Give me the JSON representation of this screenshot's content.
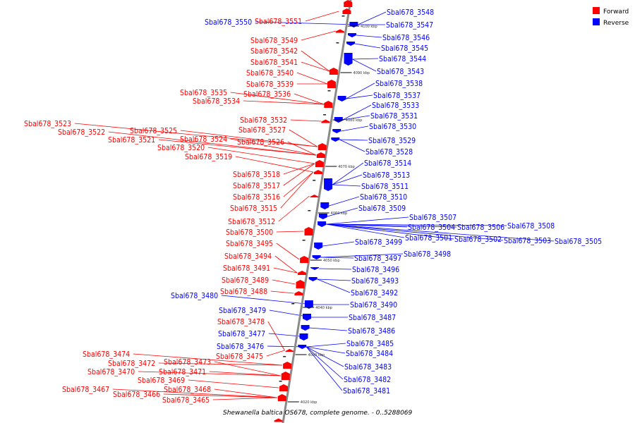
{
  "caption": "Shewanella baltica OS678, complete genome. - 0..5288069",
  "legend": [
    {
      "label": "Forward",
      "color": "#ff0000"
    },
    {
      "label": "Reverse",
      "color": "#0000ff"
    }
  ],
  "colors": {
    "forward": "#ff0000",
    "reverse": "#0000ff",
    "backbone": "#888888"
  },
  "ticks": [
    "4100 kbp",
    "4090 kbp",
    "4080 kbp",
    "4070 kbp",
    "4060 kbp",
    "4050 kbp",
    "4040 kbp",
    "4030 kbp",
    "4020 kbp"
  ],
  "forward_labels": [
    "Sbal678_3551",
    "Sbal678_3549",
    "Sbal678_3542",
    "Sbal678_3541",
    "Sbal678_3540",
    "Sbal678_3539",
    "Sbal678_3535",
    "Sbal678_3536",
    "Sbal678_3534",
    "Sbal678_3532",
    "Sbal678_3523",
    "Sbal678_3522",
    "Sbal678_3525",
    "Sbal678_3527",
    "Sbal678_3521",
    "Sbal678_3524",
    "Sbal678_3526",
    "Sbal678_3520",
    "Sbal678_3519",
    "Sbal678_3518",
    "Sbal678_3517",
    "Sbal678_3516",
    "Sbal678_3515",
    "Sbal678_3512",
    "Sbal678_3500",
    "Sbal678_3495",
    "Sbal678_3494",
    "Sbal678_3491",
    "Sbal678_3489",
    "Sbal678_3488",
    "Sbal678_3478",
    "Sbal678_3475",
    "Sbal678_3474",
    "Sbal678_3472",
    "Sbal678_3473",
    "Sbal678_3470",
    "Sbal678_3471",
    "Sbal678_3469",
    "Sbal678_3467",
    "Sbal678_3468",
    "Sbal678_3466",
    "Sbal678_3465"
  ],
  "reverse_labels": [
    "Sbal678_3550",
    "Sbal678_3548",
    "Sbal678_3547",
    "Sbal678_3546",
    "Sbal678_3545",
    "Sbal678_3544",
    "Sbal678_3543",
    "Sbal678_3538",
    "Sbal678_3537",
    "Sbal678_3533",
    "Sbal678_3531",
    "Sbal678_3530",
    "Sbal678_3529",
    "Sbal678_3528",
    "Sbal678_3514",
    "Sbal678_3513",
    "Sbal678_3511",
    "Sbal678_3510",
    "Sbal678_3509",
    "Sbal678_3507",
    "Sbal678_3504",
    "Sbal678_3506",
    "Sbal678_3508",
    "Sbal678_3501",
    "Sbal678_3502",
    "Sbal678_3503",
    "Sbal678_3505",
    "Sbal678_3499",
    "Sbal678_3497",
    "Sbal678_3498",
    "Sbal678_3496",
    "Sbal678_3493",
    "Sbal678_3492",
    "Sbal678_3490",
    "Sbal678_3480",
    "Sbal678_3479",
    "Sbal678_3487",
    "Sbal678_3486",
    "Sbal678_3477",
    "Sbal678_3476",
    "Sbal678_3485",
    "Sbal678_3484",
    "Sbal678_3483",
    "Sbal678_3482",
    "Sbal678_3481"
  ]
}
